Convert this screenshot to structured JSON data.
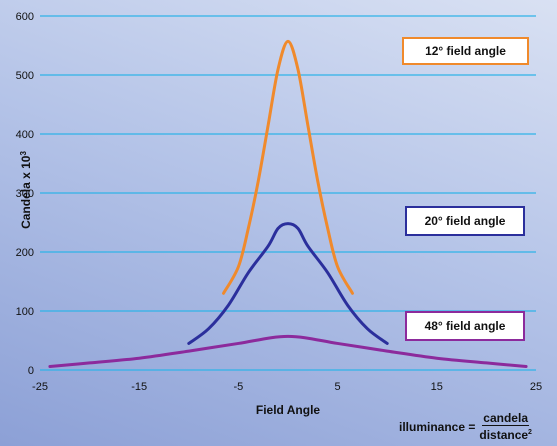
{
  "chart_data": {
    "type": "line",
    "title": "",
    "xlabel": "Field Angle",
    "ylabel": "Candela x 10",
    "ylabel_superscript": "3",
    "xlim": [
      -25,
      25
    ],
    "ylim": [
      0,
      600
    ],
    "x_ticks": [
      "-25",
      "-15",
      "-5",
      "5",
      "15",
      "25"
    ],
    "y_ticks": [
      "0",
      "100",
      "200",
      "300",
      "400",
      "500",
      "600"
    ],
    "grid": "horizontal",
    "series": [
      {
        "name": "12° field angle",
        "color": "#f08a2c",
        "x": [
          -6.5,
          -5,
          -4,
          -3,
          -2,
          -1,
          0,
          1,
          2,
          3,
          4,
          5,
          6.5
        ],
        "y": [
          130,
          175,
          240,
          320,
          415,
          510,
          557,
          510,
          415,
          320,
          240,
          175,
          130
        ]
      },
      {
        "name": "20° field angle",
        "color": "#2b2f9c",
        "x": [
          -10,
          -8,
          -6,
          -4,
          -2,
          -1,
          0,
          1,
          2,
          4,
          6,
          8,
          10
        ],
        "y": [
          45,
          70,
          110,
          165,
          210,
          240,
          248,
          240,
          210,
          165,
          110,
          70,
          45
        ]
      },
      {
        "name": "48° field angle",
        "color": "#8c2a9c",
        "x": [
          -24,
          -20,
          -15,
          -10,
          -5,
          0,
          5,
          10,
          15,
          20,
          24
        ],
        "y": [
          6,
          12,
          20,
          32,
          45,
          57,
          45,
          32,
          20,
          12,
          6
        ]
      }
    ],
    "legend_placement": "right, next to each curve"
  },
  "formula": {
    "lhs": "illuminance =",
    "numerator": "candela",
    "denominator": "distance",
    "denominator_superscript": "2"
  }
}
